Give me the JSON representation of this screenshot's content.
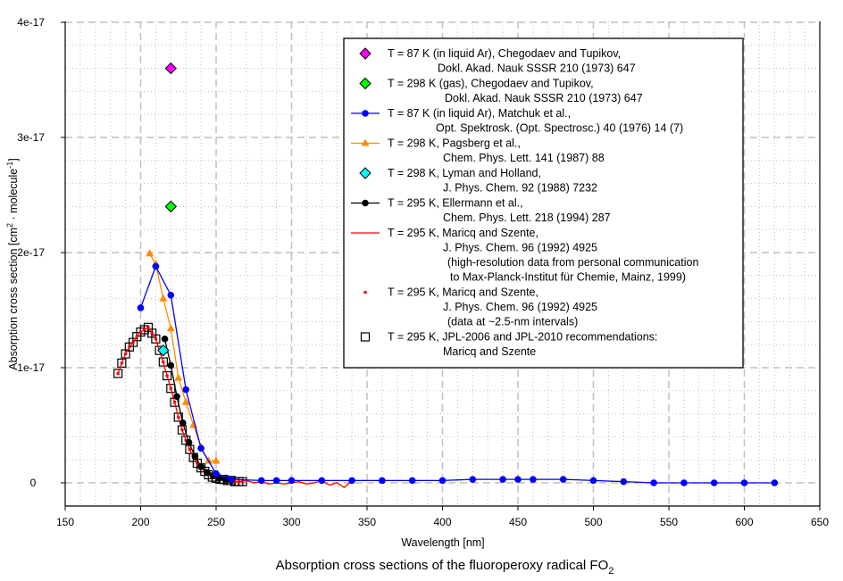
{
  "chart_data": {
    "type": "scatter",
    "title": "Absorption cross sections of the fluoroperoxy radical FO",
    "title_subscript": "2",
    "xlabel": "Wavelength [nm]",
    "ylabel_parts": [
      "Absorption cross section [cm",
      "2",
      " · molecule",
      "-1",
      "]"
    ],
    "xlim": [
      150,
      650
    ],
    "ylim": [
      -2e-18,
      4e-17
    ],
    "x_ticks": [
      150,
      200,
      250,
      300,
      350,
      400,
      450,
      500,
      550,
      600,
      650
    ],
    "x_tick_labels": [
      "150",
      "200",
      "250",
      "300",
      "350",
      "400",
      "450",
      "500",
      "550",
      "600",
      "650"
    ],
    "y_ticks": [
      0,
      1e-17,
      2e-17,
      3e-17,
      4e-17
    ],
    "y_tick_labels": [
      "0",
      "1e-17",
      "2e-17",
      "3e-17",
      "4e-17"
    ],
    "grid": true,
    "legend_position": "top-right",
    "series": [
      {
        "name": "T = 87 K (in liquid Ar), Chegodaev and Tupikov,",
        "name_line2": "Dokl. Akad. Nauk SSSR 210 (1973) 647",
        "marker": "diamond",
        "line": false,
        "color": "#ff00ff",
        "x": [
          220
        ],
        "y": [
          3.6e-17
        ]
      },
      {
        "name": "T = 298 K (gas), Chegodaev and Tupikov,",
        "name_line2": "Dokl. Akad. Nauk SSSR 210 (1973) 647",
        "marker": "diamond",
        "line": false,
        "color": "#00ff00",
        "x": [
          220
        ],
        "y": [
          2.4e-17
        ]
      },
      {
        "name": "T = 87 K (in liquid Ar), Matchuk et al.,",
        "name_line2": "Opt. Spektrosk. (Opt. Spectrosc.) 40 (1976) 14 (7)",
        "marker": "circle",
        "line": true,
        "color": "#0000ff",
        "x": [
          200,
          210,
          220,
          230,
          240,
          250,
          260,
          280,
          290,
          300,
          320,
          340,
          360,
          380,
          400,
          420,
          440,
          450,
          460,
          480,
          500,
          520,
          540,
          560,
          580,
          600,
          620
        ],
        "y": [
          1.52e-17,
          1.88e-17,
          1.63e-17,
          8.1e-18,
          3e-18,
          8e-19,
          3e-19,
          2e-19,
          2e-19,
          2e-19,
          2e-19,
          2e-19,
          2e-19,
          2e-19,
          2e-19,
          3e-19,
          3e-19,
          3e-19,
          3e-19,
          3e-19,
          2e-19,
          1e-19,
          0.0,
          0.0,
          0.0,
          0.0,
          0.0
        ]
      },
      {
        "name": "T = 298 K, Pagsberg et al.,",
        "name_line2": "Chem. Phys. Lett. 141 (1987) 88",
        "marker": "triangle",
        "line": true,
        "color": "#ff8c00",
        "x": [
          206,
          210,
          215,
          220,
          225,
          230,
          235,
          240,
          245,
          250
        ],
        "y": [
          1.99e-17,
          1.9e-17,
          1.6e-17,
          1.34e-17,
          9.1e-18,
          7e-18,
          5e-18,
          3.1e-18,
          1.9e-18,
          1.9e-18
        ]
      },
      {
        "name": "T = 298 K, Lyman and Holland,",
        "name_line2": "J. Phys. Chem. 92 (1988) 7232",
        "marker": "diamond",
        "line": false,
        "color": "#00ffff",
        "x": [
          215
        ],
        "y": [
          1.15e-17
        ]
      },
      {
        "name": "T = 295 K, Ellermann et al.,",
        "name_line2": "Chem. Phys. Lett. 218 (1994) 287",
        "marker": "circle",
        "line": true,
        "color": "#000000",
        "x": [
          216,
          220,
          224,
          228,
          232,
          236,
          240,
          244,
          248,
          252,
          256,
          260
        ],
        "y": [
          1.25e-17,
          1.02e-17,
          7.5e-18,
          5.2e-18,
          3.5e-18,
          2.3e-18,
          1.4e-18,
          9e-19,
          6e-19,
          4e-19,
          3e-19,
          2e-19
        ]
      },
      {
        "name": "T = 295 K, Maricq and Szente,",
        "name_line2": "J. Phys. Chem. 96 (1992) 4925",
        "name_line3": "(high-resolution data from personal communication",
        "name_line4": "to Max-Planck-Institut für Chemie, Mainz, 1999)",
        "marker": "none",
        "line": true,
        "color": "#ff0000",
        "x": [
          185,
          187.5,
          190,
          192.5,
          195,
          197.5,
          200,
          202.5,
          205,
          207.5,
          210,
          212.5,
          215,
          217.5,
          220,
          222.5,
          225,
          227.5,
          230,
          232.5,
          235,
          237.5,
          240,
          242.5,
          245,
          247.5,
          250,
          252.5,
          255,
          257.5,
          260,
          262.5,
          265,
          270,
          275,
          280,
          285,
          290,
          295,
          300,
          305,
          310,
          315,
          320,
          325,
          330,
          335,
          340
        ],
        "y": [
          9.5e-18,
          1.04e-17,
          1.12e-17,
          1.18e-17,
          1.22e-17,
          1.27e-17,
          1.31e-17,
          1.33e-17,
          1.35e-17,
          1.3e-17,
          1.25e-17,
          1.15e-17,
          1.05e-17,
          9.3e-18,
          8.2e-18,
          7e-18,
          5.7e-18,
          4.6e-18,
          3.7e-18,
          2.9e-18,
          2.2e-18,
          1.7e-18,
          1.3e-18,
          1e-18,
          7e-19,
          5e-19,
          4e-19,
          3e-19,
          3e-19,
          2e-19,
          2e-19,
          1e-19,
          1e-19,
          2e-19,
          0.0,
          1e-19,
          -1e-19,
          0.0,
          -1e-19,
          0.0,
          1e-19,
          -1e-19,
          0.0,
          2e-19,
          -2e-19,
          0.0,
          -4e-19,
          2e-19
        ]
      },
      {
        "name": "T = 295 K, Maricq and Szente,",
        "name_line2": "J. Phys. Chem. 96 (1992) 4925",
        "name_line3": "(data at ~2.5-nm intervals)",
        "marker": "dot",
        "line": false,
        "color": "#ff0000",
        "x": [
          185,
          187.5,
          190,
          192.5,
          195,
          197.5,
          200,
          202.5,
          205,
          207.5,
          210,
          212.5,
          215,
          217.5,
          220,
          222.5,
          225,
          227.5,
          230,
          232.5,
          235,
          237.5,
          240,
          242.5,
          245,
          247.5,
          250,
          252.5,
          255,
          257.5,
          260,
          262.5,
          265,
          267.5
        ],
        "y": [
          9.5e-18,
          1.04e-17,
          1.12e-17,
          1.18e-17,
          1.22e-17,
          1.27e-17,
          1.31e-17,
          1.33e-17,
          1.35e-17,
          1.3e-17,
          1.25e-17,
          1.15e-17,
          1.05e-17,
          9.3e-18,
          8.2e-18,
          7e-18,
          5.7e-18,
          4.6e-18,
          3.7e-18,
          2.9e-18,
          2.2e-18,
          1.7e-18,
          1.3e-18,
          1e-18,
          7e-19,
          5e-19,
          4e-19,
          3e-19,
          3e-19,
          2e-19,
          2e-19,
          1e-19,
          1e-19,
          1e-19
        ]
      },
      {
        "name": "T = 295 K, JPL-2006 and JPL-2010 recommendations:",
        "name_line2": "Maricq and Szente",
        "marker": "square",
        "line": false,
        "color": "#000000",
        "x": [
          185,
          187.5,
          190,
          192.5,
          195,
          197.5,
          200,
          202.5,
          205,
          207.5,
          210,
          212.5,
          215,
          217.5,
          220,
          222.5,
          225,
          227.5,
          230,
          232.5,
          235,
          237.5,
          240,
          242.5,
          245,
          247.5,
          250,
          252.5,
          255,
          257.5,
          260,
          262.5,
          265,
          267.5
        ],
        "y": [
          9.5e-18,
          1.04e-17,
          1.12e-17,
          1.18e-17,
          1.22e-17,
          1.27e-17,
          1.31e-17,
          1.33e-17,
          1.35e-17,
          1.3e-17,
          1.25e-17,
          1.15e-17,
          1.05e-17,
          9.3e-18,
          8.2e-18,
          7e-18,
          5.7e-18,
          4.6e-18,
          3.7e-18,
          2.9e-18,
          2.2e-18,
          1.7e-18,
          1.3e-18,
          1e-18,
          7e-19,
          5e-19,
          4e-19,
          3e-19,
          3e-19,
          2e-19,
          2e-19,
          1e-19,
          1e-19,
          1e-19
        ]
      }
    ]
  }
}
